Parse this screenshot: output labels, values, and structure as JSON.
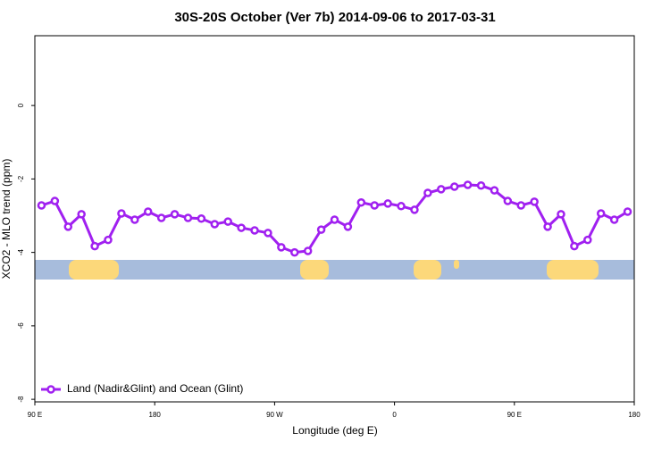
{
  "chart_data": {
    "type": "line",
    "title": "30S-20S October (Ver 7b)   2014-09-06 to 2017-03-31",
    "x_label": "Longitude (deg E)",
    "y_label": "XCO2 - MLO trend (ppm)",
    "x": [
      95,
      105,
      115,
      125,
      135,
      145,
      155,
      165,
      175,
      185,
      195,
      205,
      215,
      225,
      235,
      245,
      255,
      265,
      275,
      285,
      295,
      305,
      315,
      325,
      335,
      345,
      355,
      365,
      375,
      385,
      395,
      405,
      415,
      425,
      435,
      445,
      455,
      465,
      475,
      485,
      495,
      505,
      515,
      525,
      535
    ],
    "series": [
      {
        "name": "Land (Nadir&Glint) and Ocean (Glint)",
        "color": "#a020f0",
        "values": [
          -2.72,
          -2.6,
          -3.3,
          -2.96,
          -3.83,
          -3.66,
          -2.94,
          -3.11,
          -2.89,
          -3.06,
          -2.96,
          -3.06,
          -3.08,
          -3.23,
          -3.16,
          -3.33,
          -3.4,
          -3.47,
          -3.86,
          -4.0,
          -3.96,
          -3.38,
          -3.11,
          -3.3,
          -2.64,
          -2.72,
          -2.67,
          -2.74,
          -2.84,
          -2.38,
          -2.28,
          -2.21,
          -2.16,
          -2.18,
          -2.31,
          -2.6,
          -2.72,
          -2.62,
          -3.3,
          -2.96,
          -3.83,
          -3.66,
          -2.94,
          -3.11,
          -2.89
        ]
      }
    ],
    "xlim": [
      90,
      540
    ],
    "xticks": [
      {
        "value": 90,
        "label": "90 E"
      },
      {
        "value": 180,
        "label": "180"
      },
      {
        "value": 270,
        "label": "90 W"
      },
      {
        "value": 360,
        "label": "0"
      },
      {
        "value": 450,
        "label": "90 E"
      },
      {
        "value": 540,
        "label": "180"
      }
    ],
    "ylim": [
      -8.07,
      1.9
    ],
    "yticks": [
      0,
      -2,
      -4,
      -6,
      -8
    ],
    "legend": "bottom-left"
  }
}
